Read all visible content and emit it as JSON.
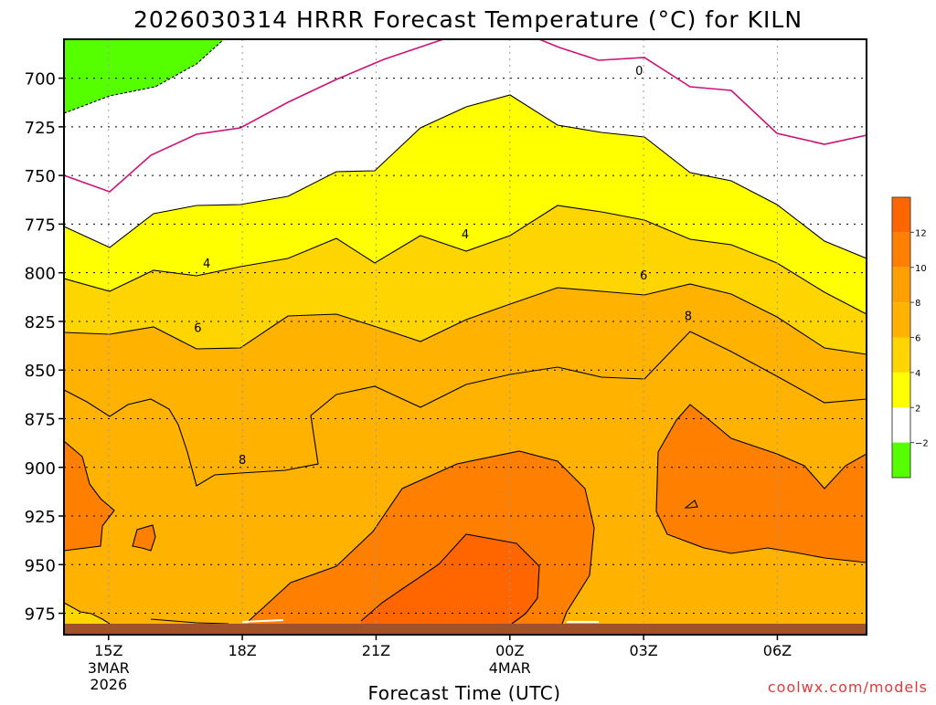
{
  "chart_data": {
    "type": "contour",
    "title": "2026030314 HRRR Forecast Temperature (°C) for KILN",
    "xlabel": "Forecast Time (UTC)",
    "ylabel": "",
    "credit": "coolwx.com/models",
    "x_ticks": [
      {
        "label": "15Z",
        "sub": [
          "3MAR",
          "2026"
        ],
        "hour": 15
      },
      {
        "label": "18Z",
        "sub": [],
        "hour": 18
      },
      {
        "label": "21Z",
        "sub": [],
        "hour": 21
      },
      {
        "label": "00Z",
        "sub": [
          "4MAR"
        ],
        "hour": 24
      },
      {
        "label": "03Z",
        "sub": [],
        "hour": 27
      },
      {
        "label": "06Z",
        "sub": [],
        "hour": 30
      }
    ],
    "xlim_hours": [
      14,
      32
    ],
    "y_ticks": [
      700,
      725,
      750,
      775,
      800,
      825,
      850,
      875,
      900,
      925,
      950,
      975
    ],
    "ylim_hpa": [
      680,
      986
    ],
    "colorbar": {
      "ticks": [
        "12",
        "10",
        "8",
        "6",
        "4",
        "2",
        "−2"
      ],
      "bins": [
        {
          "min": 12,
          "max": 14,
          "color": "#ff6600"
        },
        {
          "min": 10,
          "max": 12,
          "color": "#ff8000"
        },
        {
          "min": 8,
          "max": 10,
          "color": "#ff9f00"
        },
        {
          "min": 6,
          "max": 8,
          "color": "#ffb300"
        },
        {
          "min": 4,
          "max": 6,
          "color": "#ffd500"
        },
        {
          "min": 2,
          "max": 4,
          "color": "#ffff00"
        },
        {
          "min": -2,
          "max": 2,
          "color": "#ffffff"
        },
        {
          "min": -4,
          "max": -2,
          "color": "#55ff00"
        }
      ]
    },
    "contour_labels": [
      {
        "text": "0",
        "hour": 26.9,
        "p": 696
      },
      {
        "text": "4",
        "hour": 17.2,
        "p": 795
      },
      {
        "text": "4",
        "hour": 23.0,
        "p": 780
      },
      {
        "text": "6",
        "hour": 17.0,
        "p": 828
      },
      {
        "text": "6",
        "hour": 27.0,
        "p": 801
      },
      {
        "text": "8",
        "hour": 18.0,
        "p": 896
      },
      {
        "text": "8",
        "hour": 28.0,
        "p": 822
      }
    ],
    "ground_color": "#a0522d",
    "zero_line_color": "#cc1177"
  }
}
